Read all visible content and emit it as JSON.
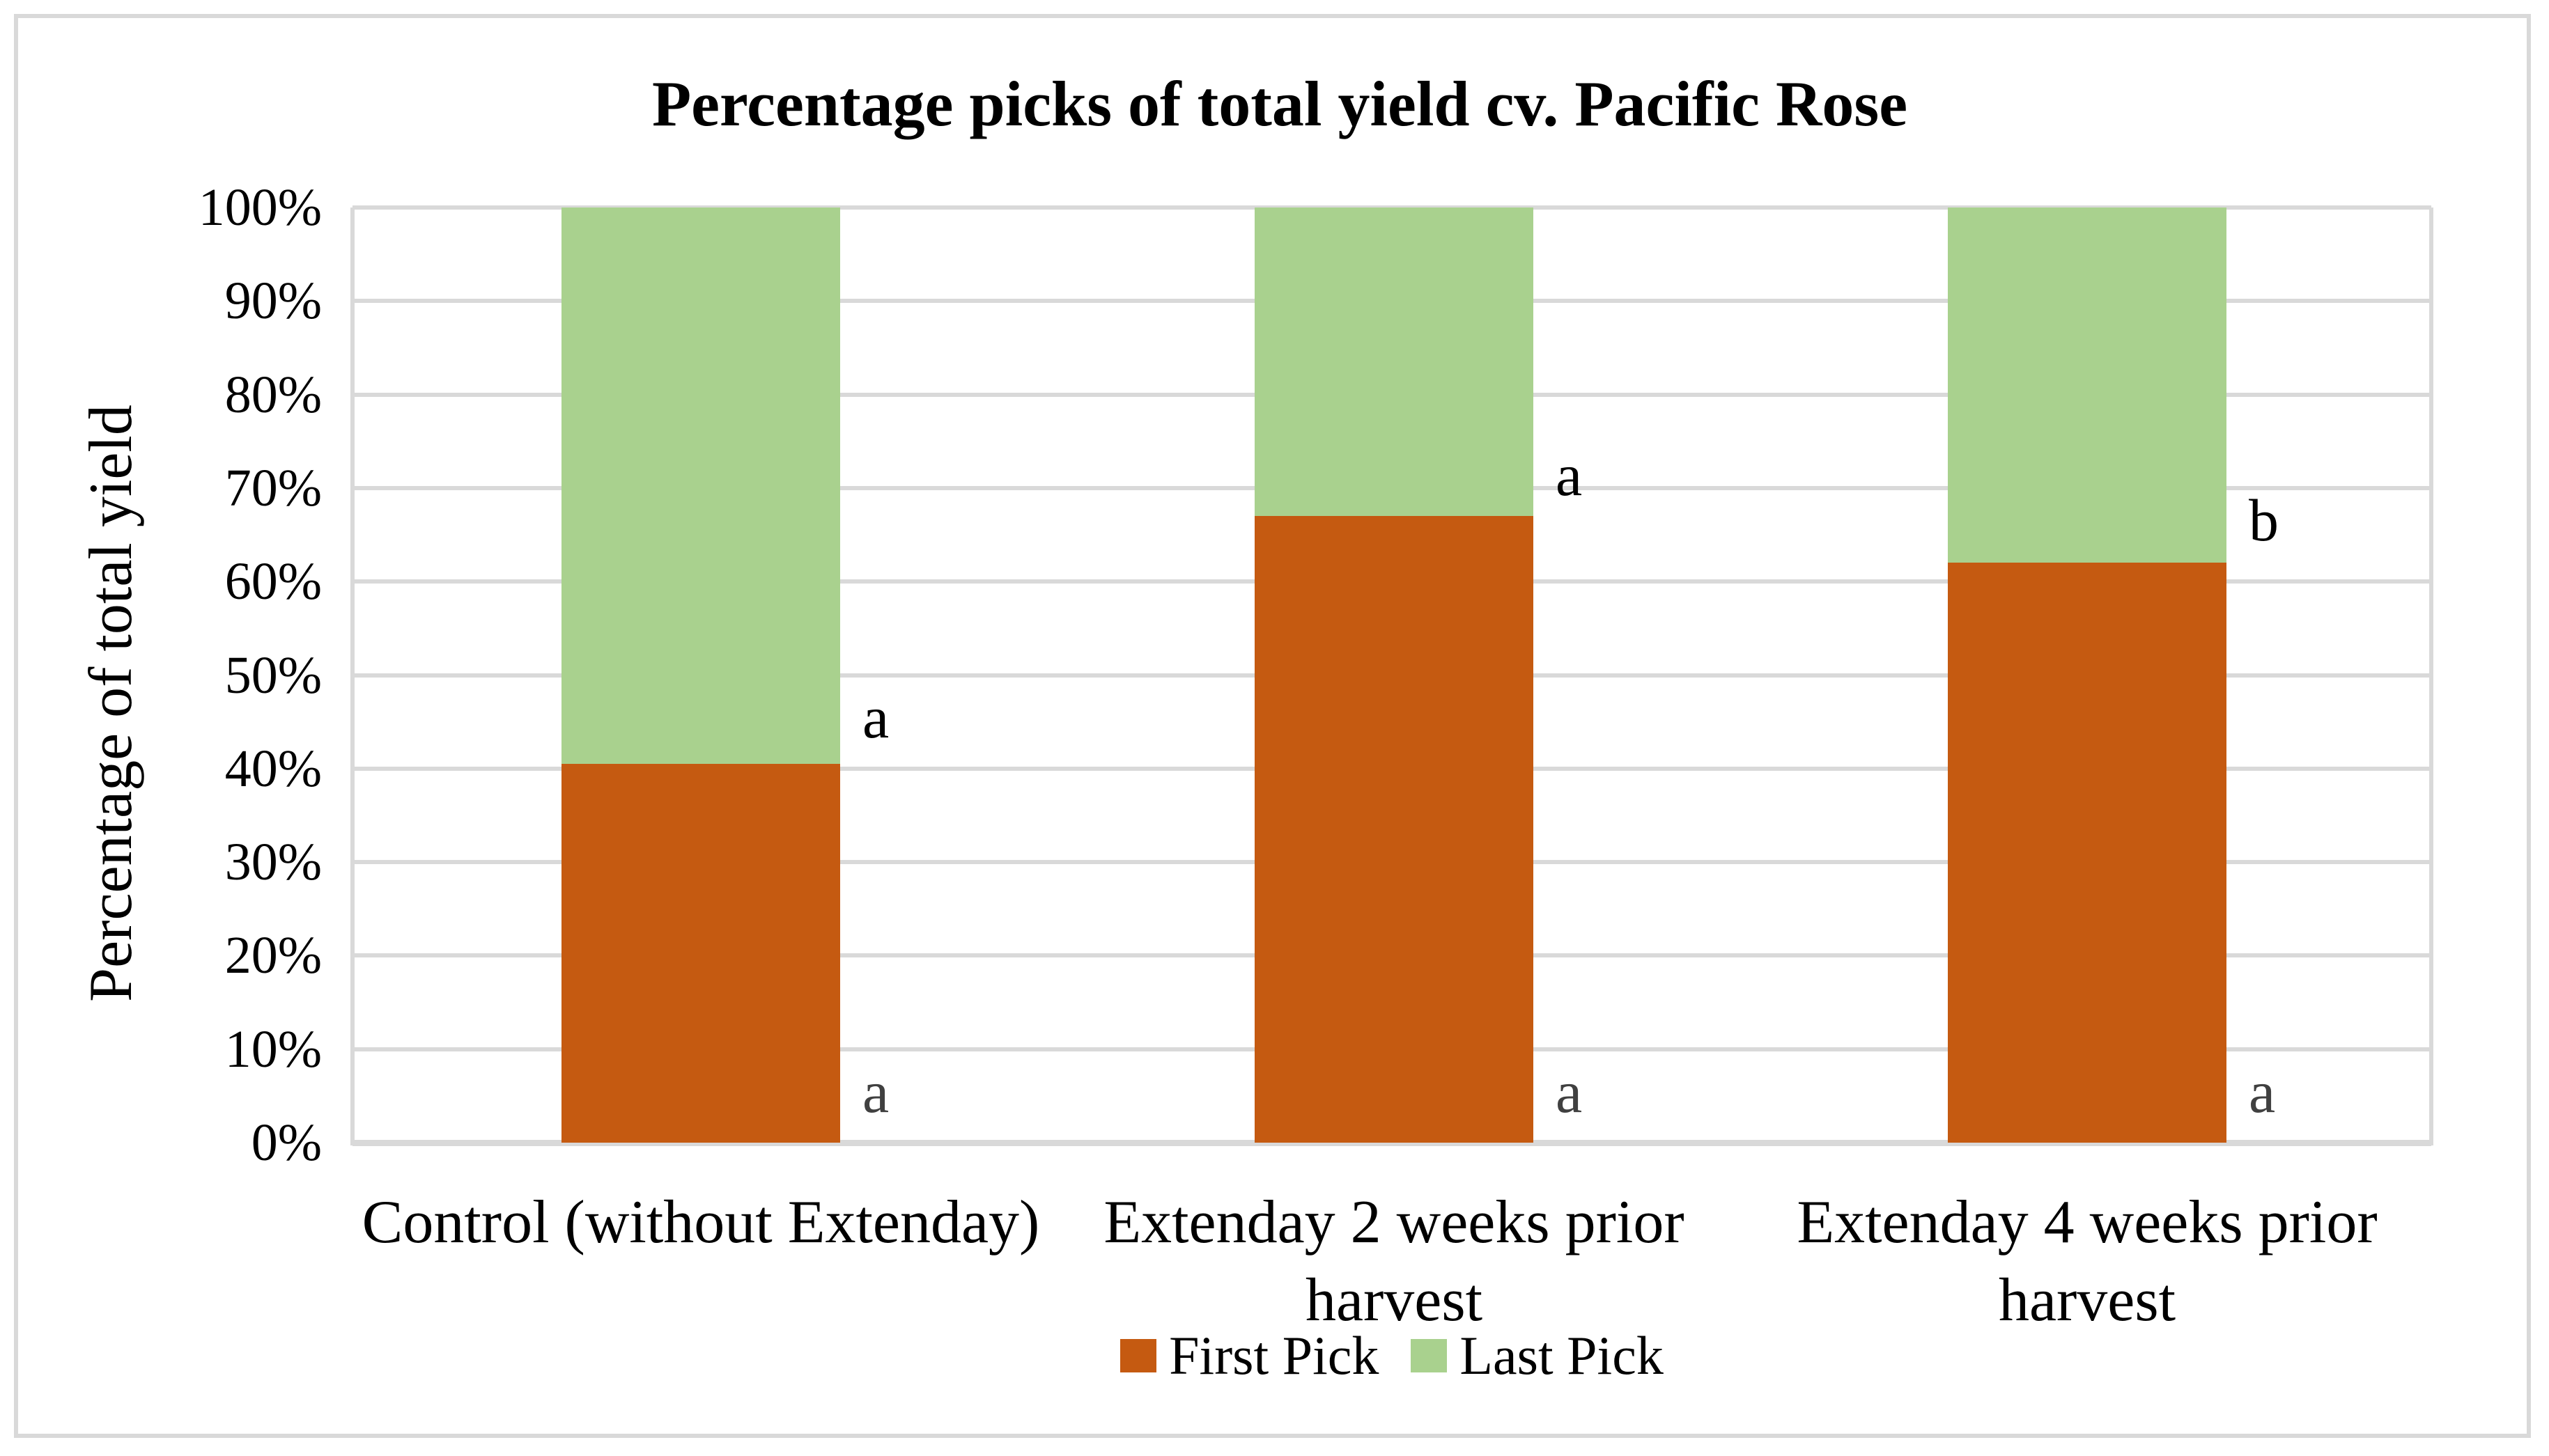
{
  "figure": {
    "background": "#FFFFFF",
    "border_color": "#D9D9D9"
  },
  "chart_data": {
    "type": "bar",
    "stacked": true,
    "title": "Percentage picks of total yield cv. Pacific Rose",
    "ylabel": "Percentage of total yield",
    "xlabel": "",
    "ylim": [
      0,
      100
    ],
    "ytick_step": 10,
    "ytick_labels": [
      "0%",
      "10%",
      "20%",
      "30%",
      "40%",
      "50%",
      "60%",
      "70%",
      "80%",
      "90%",
      "100%"
    ],
    "grid": true,
    "legend_position": "bottom-center",
    "categories": [
      {
        "label_lines": [
          "Control (without Extenday)"
        ]
      },
      {
        "label_lines": [
          "Extenday 2 weeks prior",
          "harvest"
        ]
      },
      {
        "label_lines": [
          "Extenday 4 weeks prior",
          "harvest"
        ]
      }
    ],
    "series": [
      {
        "name": "First Pick",
        "color": "#C55A11",
        "values": [
          40.5,
          67,
          62
        ]
      },
      {
        "name": "Last Pick",
        "color": "#A9D18E",
        "values": [
          59.5,
          33,
          38
        ]
      }
    ],
    "annotations": {
      "top_letters": [
        {
          "letter": "a",
          "at_percent": 45.5
        },
        {
          "letter": "a",
          "at_percent": 71.4
        },
        {
          "letter": "b",
          "at_percent": 66.6
        }
      ],
      "bottom_letters": [
        {
          "letter": "a",
          "at_percent": 5.4
        },
        {
          "letter": "a",
          "at_percent": 5.4
        },
        {
          "letter": "a",
          "at_percent": 5.4
        }
      ],
      "top_color": "#000000",
      "bottom_color": "#404040"
    },
    "colors": {
      "gridline": "#D9D9D9",
      "axis_line": "#D9D9D9",
      "text": "#000000"
    }
  }
}
